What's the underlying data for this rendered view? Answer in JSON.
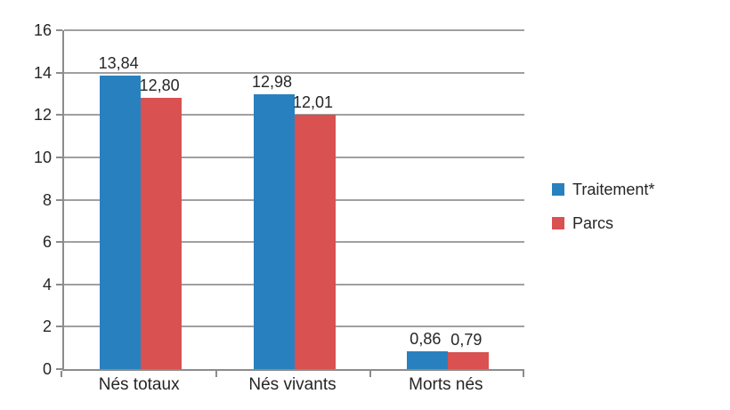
{
  "chart_data": {
    "type": "bar",
    "title": "",
    "xlabel": "",
    "ylabel": "",
    "categories": [
      "Nés totaux",
      "Nés vivants",
      "Morts nés"
    ],
    "series": [
      {
        "name": "Traitement*",
        "color": "#2881BE",
        "values": [
          13.84,
          12.98,
          0.86
        ],
        "value_labels": [
          "13,84",
          "12,98",
          "0,86"
        ]
      },
      {
        "name": "Parcs",
        "color": "#D95150",
        "values": [
          12.8,
          12.01,
          0.79
        ],
        "value_labels": [
          "12,80",
          "12,01",
          "0,79"
        ]
      }
    ],
    "ylim": [
      0,
      16
    ],
    "yticks": [
      0,
      2,
      4,
      6,
      8,
      10,
      12,
      14,
      16
    ],
    "ytick_labels": [
      "0",
      "2",
      "4",
      "6",
      "8",
      "10",
      "12",
      "14",
      "16"
    ],
    "grid": true,
    "legend_position": "right",
    "colors": {
      "axis": "#8C8C8C",
      "gridline": "#A0A0A0",
      "text": "#262626",
      "background": "#FFFFFF"
    }
  }
}
